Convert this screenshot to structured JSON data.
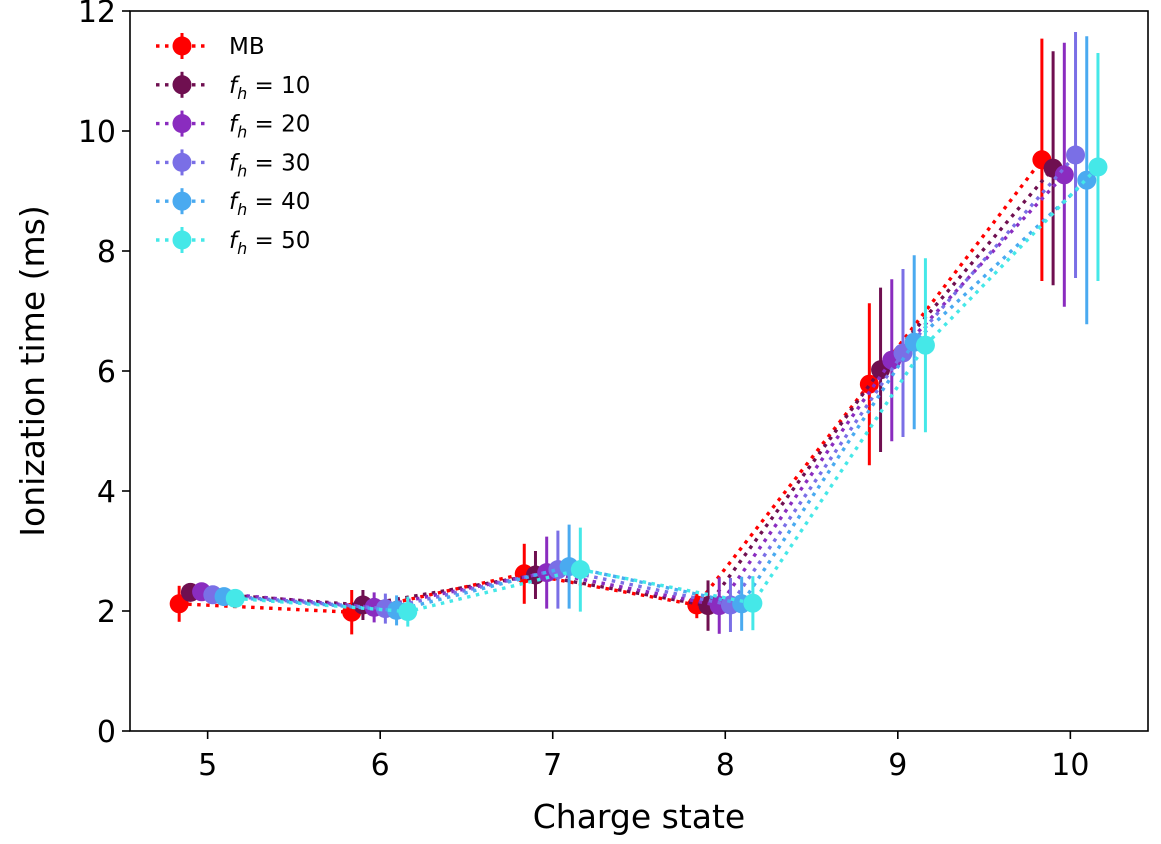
{
  "chart_data": {
    "type": "scatter",
    "title": "",
    "xlabel": "Charge state",
    "ylabel": "Ionization time (ms)",
    "xlim": [
      4.55,
      10.45
    ],
    "ylim": [
      0,
      12
    ],
    "xticks": [
      5,
      6,
      7,
      8,
      9,
      10
    ],
    "yticks": [
      0,
      2,
      4,
      6,
      8,
      10,
      12
    ],
    "grid": false,
    "legend_position": "top-left",
    "x": [
      5,
      6,
      7,
      8,
      9,
      10
    ],
    "marker_offsets": [
      -0.165,
      -0.1,
      -0.035,
      0.03,
      0.095,
      0.16
    ],
    "series": [
      {
        "name": "MB",
        "legend_base": "MB",
        "legend_value": "",
        "color": "#ff0000",
        "values": [
          2.12,
          1.98,
          2.62,
          2.1,
          5.78,
          9.52
        ],
        "errors": [
          0.3,
          0.37,
          0.5,
          0.22,
          1.35,
          2.02
        ]
      },
      {
        "name": "f_h = 10",
        "legend_base": "f",
        "legend_sub": "h",
        "legend_value": " = 10",
        "color": "#6f0f50",
        "values": [
          2.31,
          2.1,
          2.6,
          2.09,
          6.02,
          9.38
        ],
        "errors": [
          0.15,
          0.25,
          0.4,
          0.42,
          1.37,
          1.95
        ]
      },
      {
        "name": "f_h = 20",
        "legend_base": "f",
        "legend_sub": "h",
        "legend_value": " = 20",
        "color": "#8a2cbf",
        "values": [
          2.32,
          2.06,
          2.64,
          2.09,
          6.18,
          9.27
        ],
        "errors": [
          0.15,
          0.25,
          0.6,
          0.47,
          1.35,
          2.2
        ]
      },
      {
        "name": "f_h = 30",
        "legend_base": "f",
        "legend_sub": "h",
        "legend_value": " = 30",
        "color": "#7a6fe6",
        "values": [
          2.27,
          2.04,
          2.69,
          2.1,
          6.3,
          9.6
        ],
        "errors": [
          0.15,
          0.25,
          0.65,
          0.45,
          1.4,
          2.05
        ]
      },
      {
        "name": "f_h = 40",
        "legend_base": "f",
        "legend_sub": "h",
        "legend_value": " = 40",
        "color": "#4aaaf0",
        "values": [
          2.24,
          2.01,
          2.74,
          2.12,
          6.48,
          9.18
        ],
        "errors": [
          0.15,
          0.25,
          0.7,
          0.45,
          1.45,
          2.4
        ]
      },
      {
        "name": "f_h = 50",
        "legend_base": "f",
        "legend_sub": "h",
        "legend_value": " = 50",
        "color": "#45e8e8",
        "values": [
          2.21,
          1.99,
          2.69,
          2.13,
          6.43,
          9.4
        ],
        "errors": [
          0.15,
          0.25,
          0.7,
          0.45,
          1.45,
          1.9
        ]
      }
    ]
  }
}
